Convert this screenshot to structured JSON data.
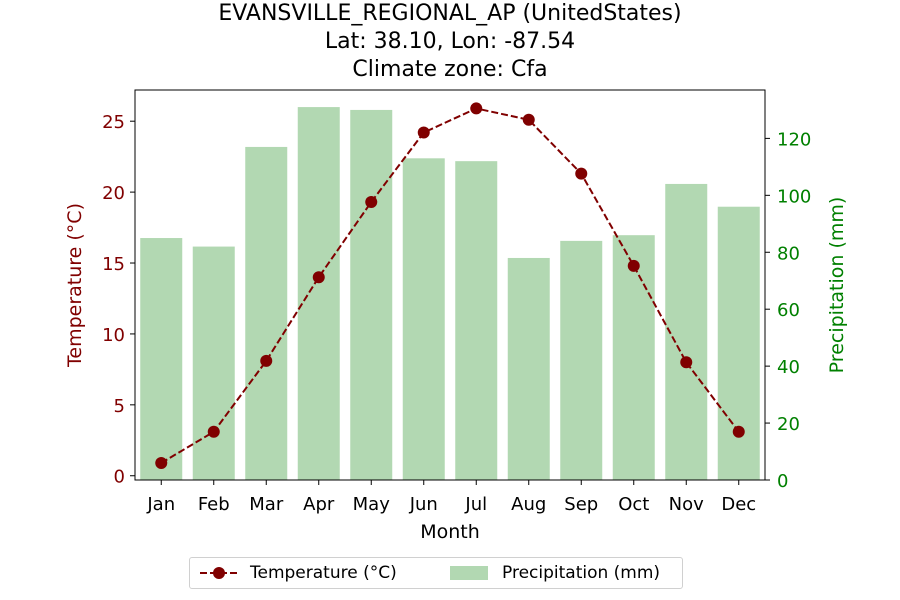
{
  "chart_data": {
    "type": "bar+line",
    "title_lines": [
      "EVANSVILLE_REGIONAL_AP (UnitedStates)",
      "Lat: 38.10, Lon: -87.54",
      "Climate zone: Cfa"
    ],
    "categories": [
      "Jan",
      "Feb",
      "Mar",
      "Apr",
      "May",
      "Jun",
      "Jul",
      "Aug",
      "Sep",
      "Oct",
      "Nov",
      "Dec"
    ],
    "xlabel": "Month",
    "ylabel_left": "Temperature (°C)",
    "ylabel_right": "Precipitation (mm)",
    "ylim_left": [
      -0.3,
      27.2
    ],
    "ylim_right": [
      0,
      137
    ],
    "yticks_left": [
      0,
      5,
      10,
      15,
      20,
      25
    ],
    "yticks_right": [
      0,
      20,
      40,
      60,
      80,
      100,
      120
    ],
    "series": [
      {
        "name": "Temperature (°C)",
        "type": "line",
        "axis": "left",
        "color": "#800000",
        "values": [
          0.9,
          3.1,
          8.1,
          14.0,
          19.3,
          24.2,
          25.9,
          25.1,
          21.3,
          14.8,
          8.0,
          3.1
        ]
      },
      {
        "name": "Precipitation (mm)",
        "type": "bar",
        "axis": "right",
        "color": "#b2d8b2",
        "values": [
          85,
          82,
          117,
          131,
          130,
          113,
          112,
          78,
          84,
          86,
          104,
          96
        ]
      }
    ],
    "legend_position": "bottom-center",
    "left_axis_color": "#800000",
    "right_axis_color": "#008000"
  }
}
